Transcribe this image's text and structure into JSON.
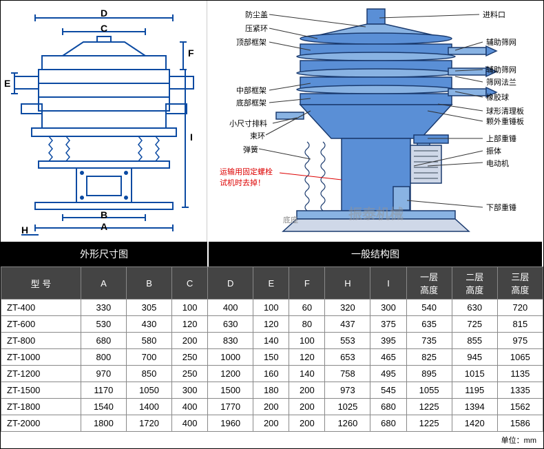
{
  "left_diagram": {
    "title": "外形尺寸图",
    "dim_labels": {
      "D": "D",
      "C": "C",
      "F": "F",
      "E": "E",
      "I": "I",
      "B": "B",
      "A": "A",
      "H": "H"
    },
    "stroke": "#0b4aa2",
    "stroke_width": 2,
    "fill": "#fff"
  },
  "right_diagram": {
    "title": "一般结构图",
    "left_labels": [
      "防尘盖",
      "压紧环",
      "顶部框架",
      "中部框架",
      "底部框架",
      "小尺寸排料",
      "束环",
      "弹簧"
    ],
    "right_labels": [
      "进料口",
      "辅助筛网",
      "辅助筛网",
      "筛网法兰",
      "橡胶球",
      "球形清理板",
      "颗外重锤板",
      "上部重锤",
      "振体",
      "电动机",
      "下部重锤"
    ],
    "red_label": "运输用固定螺栓\n试机时去掉！",
    "base_label": "底座",
    "stroke": "#0b4aa2",
    "body_fill": "#5a8fd6",
    "highlight": "#89b3e3"
  },
  "watermark": "振泰机械",
  "table": {
    "headers": [
      "型 号",
      "A",
      "B",
      "C",
      "D",
      "E",
      "F",
      "H",
      "I",
      "一层\n高度",
      "二层\n高度",
      "三层\n高度"
    ],
    "rows": [
      [
        "ZT-400",
        "330",
        "305",
        "100",
        "400",
        "100",
        "60",
        "320",
        "300",
        "540",
        "630",
        "720"
      ],
      [
        "ZT-600",
        "530",
        "430",
        "120",
        "630",
        "120",
        "80",
        "437",
        "375",
        "635",
        "725",
        "815"
      ],
      [
        "ZT-800",
        "680",
        "580",
        "200",
        "830",
        "140",
        "100",
        "553",
        "395",
        "735",
        "855",
        "975"
      ],
      [
        "ZT-1000",
        "800",
        "700",
        "250",
        "1000",
        "150",
        "120",
        "653",
        "465",
        "825",
        "945",
        "1065"
      ],
      [
        "ZT-1200",
        "970",
        "850",
        "250",
        "1200",
        "160",
        "140",
        "758",
        "495",
        "895",
        "1015",
        "1135"
      ],
      [
        "ZT-1500",
        "1170",
        "1050",
        "300",
        "1500",
        "180",
        "200",
        "973",
        "545",
        "1055",
        "1195",
        "1335"
      ],
      [
        "ZT-1800",
        "1540",
        "1400",
        "400",
        "1770",
        "200",
        "200",
        "1025",
        "680",
        "1225",
        "1394",
        "1562"
      ],
      [
        "ZT-2000",
        "1800",
        "1720",
        "400",
        "1960",
        "200",
        "200",
        "1260",
        "680",
        "1225",
        "1420",
        "1586"
      ]
    ],
    "unit": "单位：mm"
  }
}
